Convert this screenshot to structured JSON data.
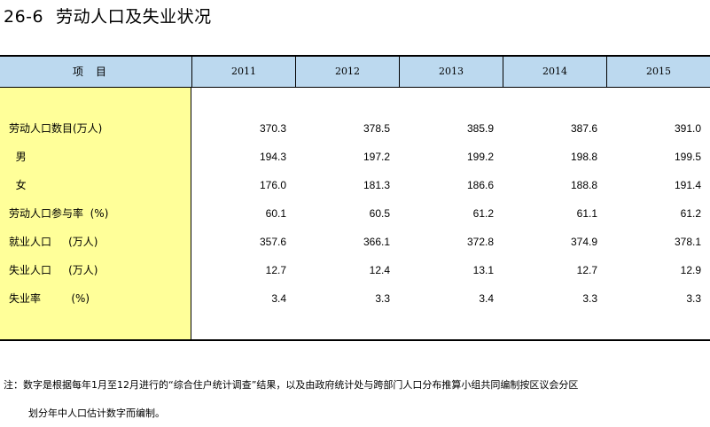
{
  "title": {
    "number": "26-6",
    "text": "劳动人口及失业状况"
  },
  "header": {
    "item": "项目",
    "years": [
      "2011",
      "2012",
      "2013",
      "2014",
      "2015"
    ]
  },
  "rows": [
    {
      "label": "劳动人口数目(万人)",
      "values": [
        "370.3",
        "378.5",
        "385.9",
        "387.6",
        "391.0"
      ]
    },
    {
      "label": "  男",
      "values": [
        "194.3",
        "197.2",
        "199.2",
        "198.8",
        "199.5"
      ]
    },
    {
      "label": "  女",
      "values": [
        "176.0",
        "181.3",
        "186.6",
        "188.8",
        "191.4"
      ]
    },
    {
      "label": "劳动人口参与率  (%)",
      "values": [
        "60.1",
        "60.5",
        "61.2",
        "61.1",
        "61.2"
      ]
    },
    {
      "label": "就业人口     (万人)",
      "values": [
        "357.6",
        "366.1",
        "372.8",
        "374.9",
        "378.1"
      ]
    },
    {
      "label": "失业人口     (万人)",
      "values": [
        "12.7",
        "12.4",
        "13.1",
        "12.7",
        "12.9"
      ]
    },
    {
      "label": "失业率         (%)",
      "values": [
        "3.4",
        "3.3",
        "3.4",
        "3.3",
        "3.3"
      ]
    }
  ],
  "note": {
    "line1": "注：数字是根据每年1月至12月进行的“综合住户统计调查”结果，以及由政府统计处与跨部门人口分布推算小组共同编制按区议会分区",
    "line2": "划分年中人口估计数字而编制。"
  }
}
